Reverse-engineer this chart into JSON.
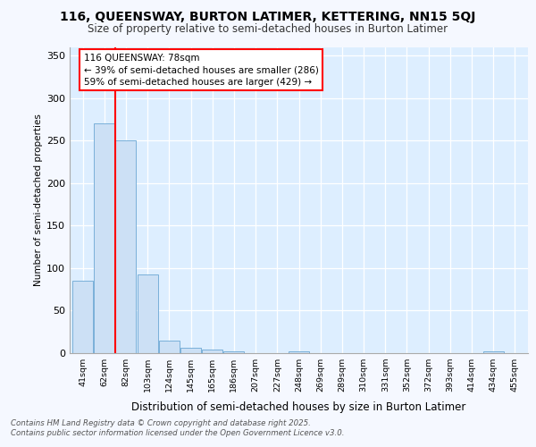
{
  "title1": "116, QUEENSWAY, BURTON LATIMER, KETTERING, NN15 5QJ",
  "title2": "Size of property relative to semi-detached houses in Burton Latimer",
  "xlabel": "Distribution of semi-detached houses by size in Burton Latimer",
  "ylabel": "Number of semi-detached properties",
  "categories": [
    "41sqm",
    "62sqm",
    "82sqm",
    "103sqm",
    "124sqm",
    "145sqm",
    "165sqm",
    "186sqm",
    "207sqm",
    "227sqm",
    "248sqm",
    "269sqm",
    "289sqm",
    "310sqm",
    "331sqm",
    "352sqm",
    "372sqm",
    "393sqm",
    "414sqm",
    "434sqm",
    "455sqm"
  ],
  "values": [
    85,
    270,
    250,
    93,
    15,
    6,
    4,
    2,
    0,
    0,
    2,
    0,
    0,
    0,
    0,
    0,
    0,
    0,
    0,
    2,
    0
  ],
  "bar_color": "#cce0f5",
  "bar_edge_color": "#7ab0d8",
  "red_line_x": 2.0,
  "annotation_title": "116 QUEENSWAY: 78sqm",
  "annotation_line1": "← 39% of semi-detached houses are smaller (286)",
  "annotation_line2": "59% of semi-detached houses are larger (429) →",
  "footer1": "Contains HM Land Registry data © Crown copyright and database right 2025.",
  "footer2": "Contains public sector information licensed under the Open Government Licence v3.0.",
  "ylim": [
    0,
    360
  ],
  "yticks": [
    0,
    50,
    100,
    150,
    200,
    250,
    300,
    350
  ],
  "fig_bg_color": "#f5f8ff",
  "plot_bg_color": "#ddeeff"
}
